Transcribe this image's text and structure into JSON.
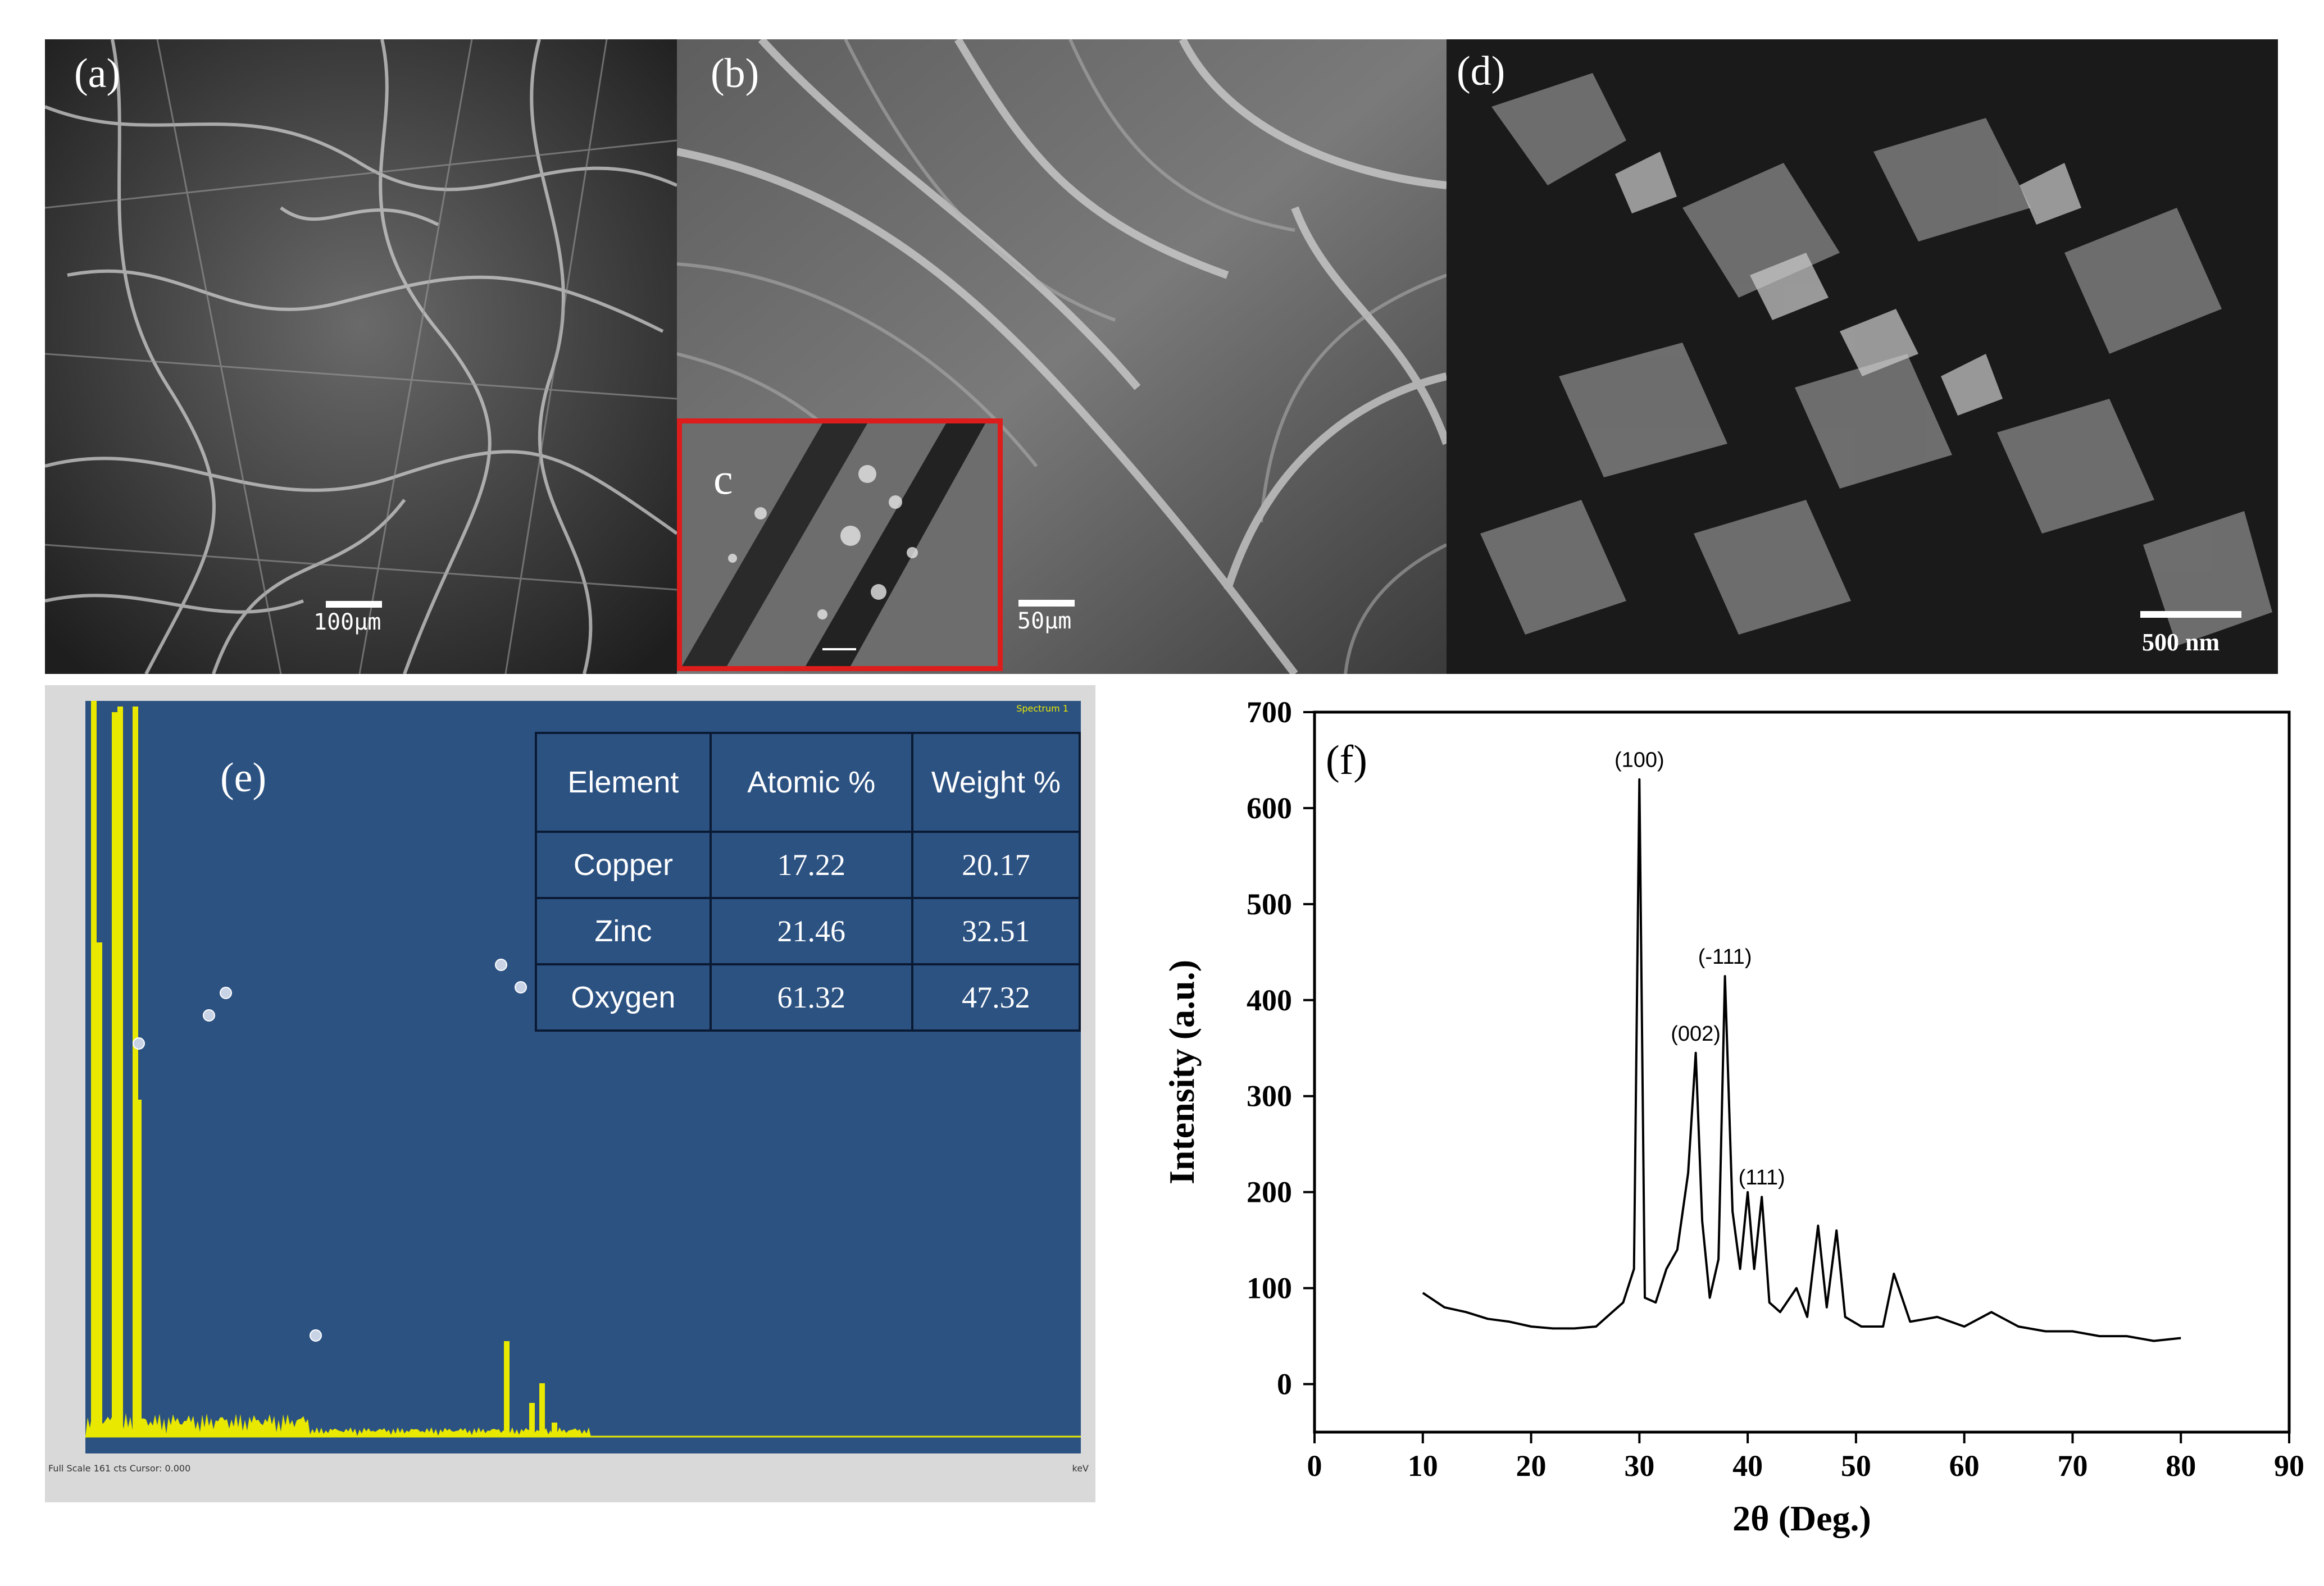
{
  "panel_a": {
    "letter": "(a)",
    "scale": "100μm"
  },
  "panel_b": {
    "letter": "(b)",
    "scale": "50μm"
  },
  "panel_c": {
    "letter": "c"
  },
  "panel_d": {
    "letter": "(d)",
    "scale": "500 nm"
  },
  "panel_e": {
    "letter": "(e)",
    "spectrum_label": "Spectrum 1",
    "footer": "Full Scale 161 cts Cursor: 0.000",
    "unit": "keV",
    "table": {
      "headers": [
        "Element",
        "Atomic %",
        "Weight %"
      ],
      "rows": [
        [
          "Copper",
          "17.22",
          "20.17"
        ],
        [
          "Zinc",
          "21.46",
          "32.51"
        ],
        [
          "Oxygen",
          "61.32",
          "47.32"
        ]
      ]
    }
  },
  "colors": {
    "eds_bg": "#2c5282",
    "eds_peaks": "#e8e800",
    "scope_border": "#dd1c1c"
  },
  "chart_data": {
    "type": "line",
    "panel_letter": "(f)",
    "xlabel": "2θ (Deg.)",
    "ylabel": "Intensity (a.u.)",
    "xlim": [
      0,
      90
    ],
    "ylim": [
      -50,
      700
    ],
    "xticks": [
      0,
      10,
      20,
      30,
      40,
      50,
      60,
      70,
      80,
      90
    ],
    "yticks": [
      0,
      100,
      200,
      300,
      400,
      500,
      600,
      700
    ],
    "series": [
      {
        "x": [
          10,
          12,
          14,
          16,
          18,
          20,
          22,
          24,
          26,
          27.5,
          28.5,
          29.5,
          30.0,
          30.5,
          31.5,
          32.5,
          33.5,
          34.5,
          35.2,
          35.8,
          36.5,
          37.3,
          37.9,
          38.6,
          39.3,
          40.0,
          40.6,
          41.3,
          42.0,
          43.0,
          44.5,
          45.5,
          46.5,
          47.3,
          48.2,
          49.0,
          50.5,
          52.5,
          53.5,
          55,
          57.5,
          60,
          62.5,
          65,
          67.5,
          70,
          72.5,
          75,
          77.5,
          80
        ],
        "y": [
          95,
          80,
          75,
          68,
          65,
          60,
          58,
          58,
          60,
          75,
          85,
          120,
          630,
          90,
          85,
          120,
          140,
          220,
          345,
          170,
          90,
          130,
          425,
          180,
          120,
          200,
          120,
          195,
          85,
          75,
          100,
          70,
          165,
          80,
          160,
          70,
          60,
          60,
          115,
          65,
          70,
          60,
          75,
          60,
          55,
          55,
          50,
          50,
          45,
          48
        ]
      }
    ],
    "annotations": [
      {
        "text": "(100)",
        "x": 30.0,
        "y": 630
      },
      {
        "text": "(002)",
        "x": 35.2,
        "y": 345
      },
      {
        "text": "(-111)",
        "x": 37.9,
        "y": 425
      },
      {
        "text": "(111)",
        "x": 41.3,
        "y": 195
      }
    ]
  }
}
